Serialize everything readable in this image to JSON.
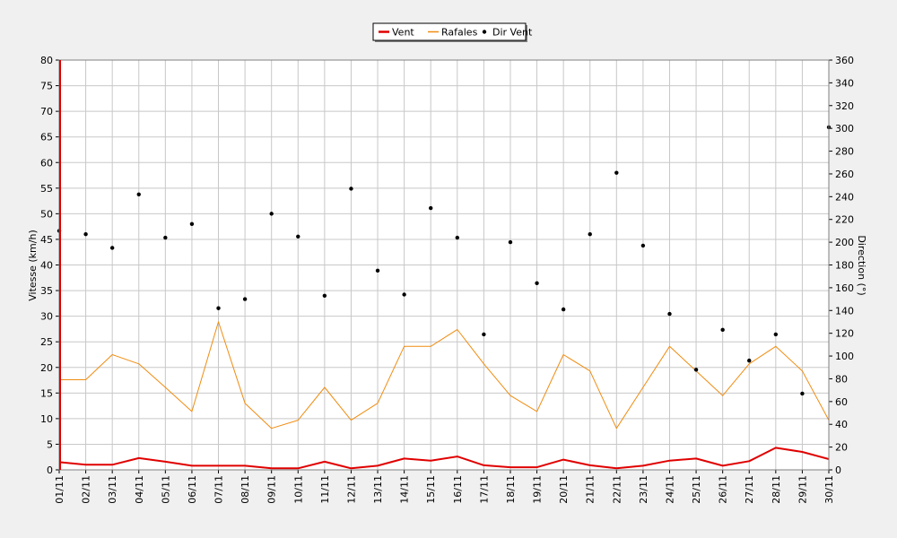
{
  "chart_data": {
    "type": "line",
    "xlabel": "",
    "ylabel": "Vitesse (km/h)",
    "y2label": "Direction (°)",
    "ylim": [
      0,
      80
    ],
    "y2lim": [
      0,
      360
    ],
    "yticks": [
      "0",
      "5",
      "10",
      "15",
      "20",
      "25",
      "30",
      "35",
      "40",
      "45",
      "50",
      "55",
      "60",
      "65",
      "70",
      "75",
      "80"
    ],
    "y2ticks": [
      "0",
      "20",
      "40",
      "60",
      "80",
      "100",
      "120",
      "140",
      "160",
      "180",
      "200",
      "220",
      "240",
      "260",
      "280",
      "300",
      "320",
      "340",
      "360"
    ],
    "grid": true,
    "legend_position": "top-center",
    "categories": [
      "01/11",
      "02/11",
      "03/11",
      "04/11",
      "05/11",
      "06/11",
      "07/11",
      "08/11",
      "09/11",
      "10/11",
      "11/11",
      "12/11",
      "13/11",
      "14/11",
      "15/11",
      "16/11",
      "17/11",
      "18/11",
      "19/11",
      "20/11",
      "21/11",
      "22/11",
      "23/11",
      "24/11",
      "25/11",
      "26/11",
      "27/11",
      "28/11",
      "29/11",
      "30/11"
    ],
    "series": [
      {
        "name": "Vent",
        "kind": "line",
        "axis": "left",
        "color": "#e00000",
        "values": [
          1.5,
          1.0,
          1.0,
          2.3,
          1.6,
          0.8,
          0.8,
          0.8,
          0.3,
          0.3,
          1.6,
          0.3,
          0.8,
          2.2,
          1.8,
          2.6,
          0.9,
          0.5,
          0.5,
          2.0,
          0.9,
          0.3,
          0.8,
          1.8,
          2.2,
          0.8,
          1.7,
          4.3,
          3.5,
          2.1
        ]
      },
      {
        "name": "Rafales",
        "kind": "line",
        "axis": "left",
        "color": "#f08c10",
        "values": [
          17.6,
          17.6,
          22.5,
          20.7,
          16.1,
          11.4,
          28.9,
          13.0,
          8.1,
          9.7,
          16.1,
          9.7,
          13.0,
          24.1,
          24.1,
          27.4,
          20.7,
          14.5,
          11.4,
          22.5,
          19.3,
          8.1,
          16.1,
          24.1,
          19.3,
          14.5,
          20.7,
          24.1,
          19.3,
          9.7
        ]
      },
      {
        "name": "Dir Vent",
        "kind": "scatter",
        "axis": "right",
        "color": "#000000",
        "values": [
          210,
          207,
          195,
          242,
          204,
          216,
          142,
          150,
          225,
          205,
          153,
          247,
          175,
          154,
          230,
          204,
          119,
          200,
          164,
          141,
          207,
          261,
          197,
          137,
          88,
          123,
          96,
          119,
          67,
          301
        ]
      }
    ]
  }
}
